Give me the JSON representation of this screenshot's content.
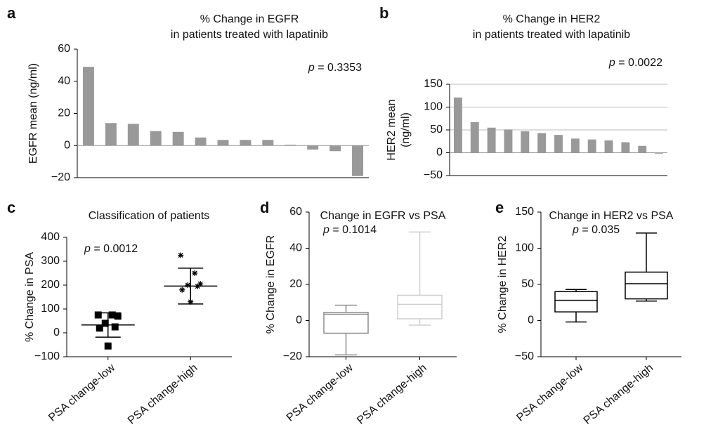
{
  "chart_data": [
    {
      "type": "bar",
      "panel_label": "a",
      "title": [
        "% Change in EGFR",
        "in patients treated with lapatinib"
      ],
      "ylabel": [
        "EGFR mean (ng/ml)"
      ],
      "annotation": {
        "symbol": "p",
        "text": "= 0.3353"
      },
      "categories": [
        null,
        null,
        null,
        null,
        null,
        null,
        null,
        null,
        null,
        null,
        null,
        null,
        null
      ],
      "values": [
        49,
        14,
        13.5,
        9,
        8.5,
        5,
        3.5,
        3.5,
        3.5,
        0.5,
        -2.5,
        -3.5,
        -19
      ],
      "color": "#999999",
      "ylim": [
        -20,
        60
      ],
      "yticks": [
        {
          "value": -20,
          "label": "−20"
        },
        0,
        20,
        40,
        60
      ],
      "grid": false
    },
    {
      "type": "bar",
      "panel_label": "b",
      "title": [
        "% Change in HER2",
        "in patients treated with lapatinib"
      ],
      "ylabel": [
        "HER2 mean",
        "(ng/ml)"
      ],
      "annotation": {
        "symbol": "p",
        "text": "= 0.0022"
      },
      "categories": [
        null,
        null,
        null,
        null,
        null,
        null,
        null,
        null,
        null,
        null,
        null,
        null,
        null
      ],
      "values": [
        121,
        67,
        55,
        51,
        47,
        43,
        39,
        31,
        29,
        27,
        23,
        15,
        -2
      ],
      "color": "#999999",
      "ylim": [
        -50,
        150
      ],
      "yticks": [
        {
          "value": -50,
          "label": "−50"
        },
        0,
        50,
        100,
        150
      ],
      "grid": true
    },
    {
      "type": "strip",
      "panel_label": "c",
      "title": [
        "Classification of patients"
      ],
      "ylabel": [
        "% Change in PSA"
      ],
      "annotation": {
        "symbol": "p",
        "text": "= 0.0012"
      },
      "categories": [
        "PSA change-low",
        "PSA change-high"
      ],
      "series": [
        {
          "marker": "square",
          "color": "#000000",
          "points": [
            75,
            75,
            70,
            40,
            25,
            20,
            -55
          ],
          "mean": 33,
          "error": 51
        },
        {
          "marker": "star",
          "color": "#000000",
          "points": [
            325,
            250,
            205,
            200,
            195,
            180,
            130
          ],
          "mean": 196,
          "error": 75
        }
      ],
      "ylim": [
        -100,
        400
      ],
      "yticks": [
        {
          "value": -100,
          "label": "−100"
        },
        0,
        100,
        200,
        300,
        400
      ]
    },
    {
      "type": "box",
      "panel_label": "d",
      "title": [
        "Change in EGFR vs PSA"
      ],
      "ylabel": [
        "% Change in EGFR"
      ],
      "annotation": {
        "symbol": "p",
        "text": "= 0.1014"
      },
      "categories": [
        "PSA change-low",
        "PSA change-high"
      ],
      "series": [
        {
          "color": "#8c8c8c",
          "min": -19,
          "q1": -7,
          "median": 3.5,
          "q3": 4.5,
          "max": 8.5
        },
        {
          "color": "#cfcfcf",
          "min": -2.5,
          "q1": 1,
          "median": 9,
          "q3": 14,
          "max": 49
        }
      ],
      "ylim": [
        -20,
        60
      ],
      "yticks": [
        {
          "value": -20,
          "label": "−20"
        },
        0,
        20,
        40,
        60
      ]
    },
    {
      "type": "box",
      "panel_label": "e",
      "title": [
        "Change in HER2 vs PSA"
      ],
      "ylabel": [
        "% Change in HER2"
      ],
      "annotation": {
        "symbol": "p",
        "text": "= 0.035"
      },
      "categories": [
        "PSA change-low",
        "PSA change-high"
      ],
      "series": [
        {
          "color": "#000000",
          "min": -2,
          "q1": 12,
          "median": 28,
          "q3": 40,
          "max": 43
        },
        {
          "color": "#000000",
          "min": 27,
          "q1": 30,
          "median": 51,
          "q3": 67,
          "max": 121
        }
      ],
      "ylim": [
        -50,
        150
      ],
      "yticks": [
        {
          "value": -50,
          "label": "−50"
        },
        0,
        50,
        100,
        150
      ]
    }
  ]
}
